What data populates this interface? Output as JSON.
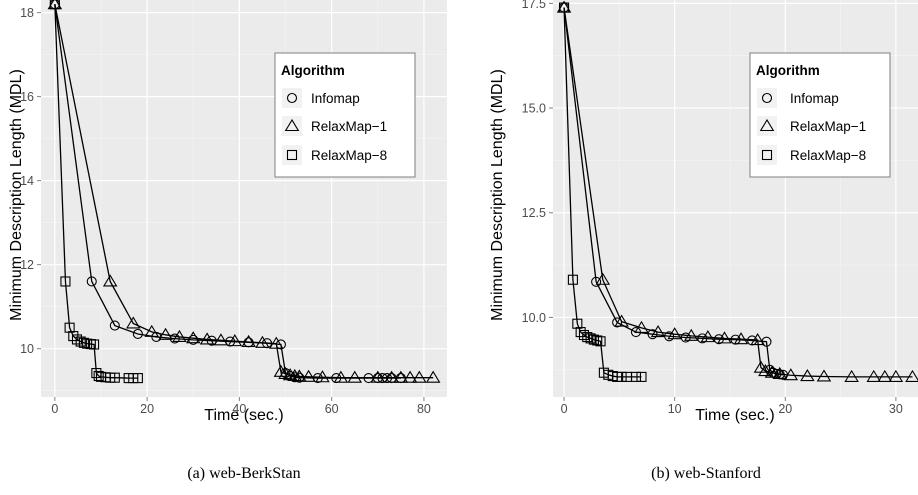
{
  "chart_data": [
    {
      "type": "line",
      "caption": "(a) web-BerkStan",
      "xlabel": "Time (sec.)",
      "ylabel": "Minimum Description Length (MDL)",
      "xlim": [
        -3,
        85
      ],
      "ylim": [
        8.85,
        18.3
      ],
      "xticks": [
        0,
        20,
        40,
        60,
        80
      ],
      "yticks": [
        10,
        12,
        14,
        16,
        18
      ],
      "ytick_labels": [
        "10",
        "12",
        "14",
        "16",
        "18"
      ],
      "grid": true,
      "legend": {
        "title": "Algorithm",
        "placement": "top-right",
        "entries": [
          "Infomap",
          "RelaxMap−1",
          "RelaxMap−8"
        ]
      },
      "series": [
        {
          "name": "Infomap",
          "marker": "circle",
          "x": [
            0,
            8,
            13,
            18,
            22,
            26,
            30,
            34,
            38,
            42,
            46,
            49,
            50,
            51,
            52,
            53,
            57,
            61,
            68,
            70,
            71,
            72,
            73,
            75
          ],
          "y": [
            18.2,
            11.6,
            10.55,
            10.35,
            10.28,
            10.24,
            10.21,
            10.19,
            10.17,
            10.15,
            10.13,
            10.1,
            9.42,
            9.35,
            9.32,
            9.31,
            9.3,
            9.3,
            9.3,
            9.3,
            9.3,
            9.3,
            9.3,
            9.3
          ]
        },
        {
          "name": "RelaxMap−1",
          "marker": "triangle",
          "x": [
            0,
            12,
            17,
            21,
            24,
            27,
            30,
            33,
            36,
            39,
            42,
            45,
            48,
            49,
            50,
            51,
            52,
            53,
            55,
            58,
            62,
            65,
            70,
            73,
            75,
            77,
            79,
            82
          ],
          "y": [
            18.2,
            11.6,
            10.6,
            10.4,
            10.33,
            10.28,
            10.25,
            10.22,
            10.2,
            10.18,
            10.16,
            10.14,
            10.12,
            9.45,
            9.4,
            9.37,
            9.35,
            9.34,
            9.33,
            9.32,
            9.31,
            9.31,
            9.31,
            9.31,
            9.31,
            9.31,
            9.31,
            9.31
          ],
          "line": false
        },
        {
          "name": "RelaxMap−8",
          "marker": "square",
          "x": [
            0,
            2.3,
            3.2,
            4,
            4.8,
            5.6,
            6.3,
            7,
            7.8,
            8.5,
            9,
            9.5,
            10,
            11,
            12,
            13,
            16,
            17,
            18
          ],
          "y": [
            18.2,
            11.6,
            10.5,
            10.3,
            10.22,
            10.17,
            10.14,
            10.12,
            10.11,
            10.1,
            9.42,
            9.35,
            9.33,
            9.32,
            9.31,
            9.31,
            9.3,
            9.3,
            9.3
          ]
        }
      ]
    },
    {
      "type": "line",
      "caption": "(b) web-Stanford",
      "xlabel": "Time (sec.)",
      "ylabel": "Minimum Description Length (MDL)",
      "xlim": [
        -1,
        32
      ],
      "ylim": [
        8.1,
        17.58
      ],
      "xticks": [
        0,
        10,
        20,
        30
      ],
      "yticks": [
        10.0,
        12.5,
        15.0,
        17.5
      ],
      "ytick_labels": [
        "10.0",
        "12.5",
        "15.0",
        "17.5"
      ],
      "grid": true,
      "legend": {
        "title": "Algorithm",
        "placement": "top-right",
        "entries": [
          "Infomap",
          "RelaxMap−1",
          "RelaxMap−8"
        ]
      },
      "series": [
        {
          "name": "Infomap",
          "marker": "circle",
          "x": [
            0,
            2.9,
            4.8,
            6.5,
            8,
            9.5,
            11,
            12.5,
            14,
            15.5,
            17,
            18.3,
            18.6,
            18.9,
            19.2,
            19.5,
            19.8
          ],
          "y": [
            17.4,
            10.85,
            9.88,
            9.65,
            9.6,
            9.55,
            9.52,
            9.5,
            9.48,
            9.47,
            9.45,
            9.42,
            8.75,
            8.68,
            8.65,
            8.64,
            8.63
          ]
        },
        {
          "name": "RelaxMap−1",
          "marker": "triangle",
          "x": [
            0,
            3.5,
            5.2,
            7,
            8.5,
            10,
            11.5,
            13,
            14.5,
            16,
            17.5,
            17.8,
            18.2,
            18.8,
            19.5,
            20.5,
            22,
            23.5,
            26,
            28,
            29,
            30,
            31.5
          ],
          "y": [
            17.4,
            10.9,
            9.9,
            9.75,
            9.65,
            9.6,
            9.56,
            9.53,
            9.5,
            9.48,
            9.46,
            8.8,
            8.72,
            8.68,
            8.65,
            8.62,
            8.6,
            8.59,
            8.58,
            8.58,
            8.58,
            8.58,
            8.58
          ]
        },
        {
          "name": "RelaxMap−8",
          "marker": "square",
          "x": [
            0,
            0.8,
            1.2,
            1.5,
            1.8,
            2.1,
            2.4,
            2.7,
            3,
            3.3,
            3.6,
            4,
            4.4,
            4.8,
            5.2,
            5.7,
            6.5,
            7
          ],
          "y": [
            17.4,
            10.9,
            9.85,
            9.65,
            9.58,
            9.53,
            9.5,
            9.47,
            9.45,
            9.43,
            8.68,
            8.63,
            8.6,
            8.58,
            8.58,
            8.58,
            8.58,
            8.58
          ]
        }
      ]
    }
  ]
}
